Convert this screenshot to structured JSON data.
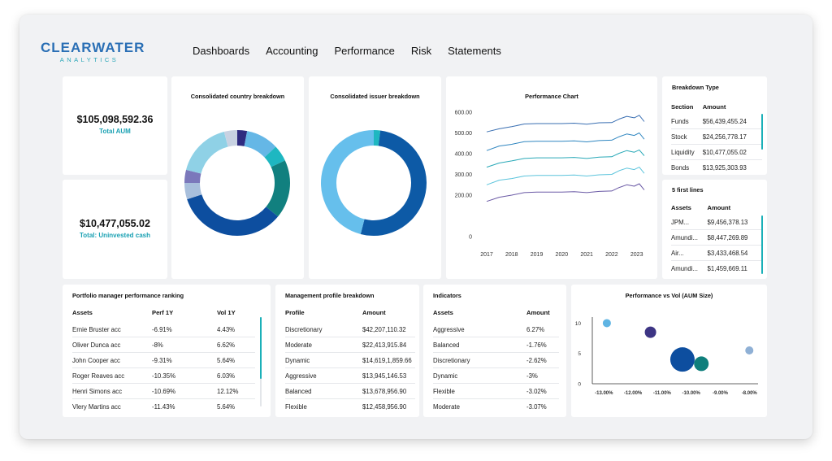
{
  "brand": {
    "name_line1": "CLEARWATER",
    "name_line2": "ANALYTICS"
  },
  "nav": [
    "Dashboards",
    "Accounting",
    "Performance",
    "Risk",
    "Statements"
  ],
  "kpis": {
    "total_aum": {
      "value": "$105,098,592.36",
      "label": "Total AUM"
    },
    "uninvested": {
      "value": "$10,477,055.02",
      "label": "Total: Uninvested cash"
    }
  },
  "country_breakdown": {
    "title": "Consolidated country breakdown",
    "segments": [
      {
        "value": 3,
        "color": "#2f2b80"
      },
      {
        "value": 10,
        "color": "#65b7e6"
      },
      {
        "value": 5,
        "color": "#1eb7c1"
      },
      {
        "value": 18,
        "color": "#11807f"
      },
      {
        "value": 34,
        "color": "#0d4e9f"
      },
      {
        "value": 5,
        "color": "#a8bfdc"
      },
      {
        "value": 4,
        "color": "#7b78bb"
      },
      {
        "value": 17,
        "color": "#8fd1e6"
      },
      {
        "value": 4,
        "color": "#c8d2e2"
      }
    ]
  },
  "issuer_breakdown": {
    "title": "Consolidated issuer breakdown",
    "segments": [
      {
        "value": 2,
        "color": "#1eb7c1"
      },
      {
        "value": 52,
        "color": "#0d5aa6"
      },
      {
        "value": 46,
        "color": "#66bfec"
      }
    ]
  },
  "chart_data": {
    "type": "line",
    "title": "Performance Chart",
    "x_ticks": [
      "2017",
      "2018",
      "2019",
      "2020",
      "2021",
      "2022",
      "2023"
    ],
    "y_ticks": [
      "600.00",
      "500.00",
      "400.00",
      "300.00",
      "200.00",
      "0"
    ],
    "ylim": [
      0,
      600
    ],
    "x_range": [
      2017,
      2023.4
    ],
    "series": [
      {
        "color": "#3a6fb2",
        "x": [
          2017.0,
          2017.5,
          2018.0,
          2018.5,
          2019.0,
          2019.5,
          2020.0,
          2020.5,
          2021.0,
          2021.5,
          2022.0,
          2022.3,
          2022.6,
          2022.9,
          2023.1,
          2023.3
        ],
        "y": [
          505,
          520,
          530,
          543,
          545,
          545,
          545,
          547,
          542,
          549,
          550,
          567,
          580,
          573,
          585,
          555
        ]
      },
      {
        "color": "#2f86c0",
        "x": [
          2017.0,
          2017.5,
          2018.0,
          2018.5,
          2019.0,
          2019.5,
          2020.0,
          2020.5,
          2021.0,
          2021.5,
          2022.0,
          2022.3,
          2022.6,
          2022.9,
          2023.1,
          2023.3
        ],
        "y": [
          415,
          437,
          445,
          458,
          460,
          460,
          460,
          462,
          457,
          463,
          465,
          482,
          495,
          488,
          500,
          470
        ]
      },
      {
        "color": "#2aa9b8",
        "x": [
          2017.0,
          2017.5,
          2018.0,
          2018.5,
          2019.0,
          2019.5,
          2020.0,
          2020.5,
          2021.0,
          2021.5,
          2022.0,
          2022.3,
          2022.6,
          2022.9,
          2023.1,
          2023.3
        ],
        "y": [
          335,
          355,
          365,
          377,
          380,
          380,
          380,
          382,
          377,
          383,
          385,
          402,
          415,
          407,
          418,
          390
        ]
      },
      {
        "color": "#5cc4dc",
        "x": [
          2017.0,
          2017.5,
          2018.0,
          2018.5,
          2019.0,
          2019.5,
          2020.0,
          2020.5,
          2021.0,
          2021.5,
          2022.0,
          2022.3,
          2022.6,
          2022.9,
          2023.1,
          2023.3
        ],
        "y": [
          250,
          272,
          280,
          292,
          295,
          295,
          295,
          297,
          292,
          298,
          300,
          318,
          330,
          323,
          335,
          305
        ]
      },
      {
        "color": "#6a59a5",
        "x": [
          2017.0,
          2017.5,
          2018.0,
          2018.5,
          2019.0,
          2019.5,
          2020.0,
          2020.5,
          2021.0,
          2021.5,
          2022.0,
          2022.3,
          2022.6,
          2022.9,
          2023.1,
          2023.3
        ],
        "y": [
          170,
          190,
          200,
          212,
          215,
          215,
          215,
          217,
          212,
          218,
          220,
          237,
          250,
          243,
          255,
          225
        ]
      }
    ]
  },
  "breakdown_type": {
    "title": "Breakdown Type",
    "headers": [
      "Section",
      "Amount"
    ],
    "rows": [
      [
        "Funds",
        "$56,439,455.24"
      ],
      [
        "Stock",
        "$24,256,778.17"
      ],
      [
        "Liquidity",
        "$10,477,055.02"
      ],
      [
        "Bonds",
        "$13,925,303.93"
      ]
    ]
  },
  "first_lines": {
    "title": "5 first lines",
    "headers": [
      "Assets",
      "Amount"
    ],
    "rows": [
      [
        "JPM...",
        "$9,456,378.13"
      ],
      [
        "Amundi...",
        "$8,447,269.89"
      ],
      [
        "Air...",
        "$3,433,468.54"
      ],
      [
        "Amundi...",
        "$1,459,669.11"
      ]
    ]
  },
  "pm_ranking": {
    "title": "Portfolio manager performance ranking",
    "headers": [
      "Assets",
      "Perf 1Y",
      "Vol 1Y"
    ],
    "rows": [
      [
        "Ernie Bruster acc",
        "-6.91%",
        "4.43%"
      ],
      [
        "Oliver Dunca acc",
        "-8%",
        "6.62%"
      ],
      [
        "John Cooper acc",
        "-9.31%",
        "5.64%"
      ],
      [
        "Roger Reaves acc",
        "-10.35%",
        "6.03%"
      ],
      [
        "Henri Simons acc",
        "-10.69%",
        "12.12%"
      ],
      [
        "Vlery Martins acc",
        "-11.43%",
        "5.64%"
      ]
    ]
  },
  "management_profile": {
    "title": "Management profile breakdown",
    "headers": [
      "Profile",
      "Amount"
    ],
    "rows": [
      [
        "Discretionary",
        "$42,207,110.32"
      ],
      [
        "Moderate",
        "$22,413,915.84"
      ],
      [
        "Dynamic",
        "$14,619,1,859.66"
      ],
      [
        "Aggressive",
        "$13,945,146.53"
      ],
      [
        "Balanced",
        "$13,678,956.90"
      ],
      [
        "Flexible",
        "$12,458,956.90"
      ]
    ]
  },
  "indicators": {
    "title": "Indicators",
    "headers": [
      "Assets",
      "Amount"
    ],
    "rows": [
      [
        "Aggressive",
        "6.27%"
      ],
      [
        "Balanced",
        "-1.76%"
      ],
      [
        "Discretionary",
        "-2.62%"
      ],
      [
        "Dynamic",
        "-3%"
      ],
      [
        "Flexible",
        "-3.02%"
      ],
      [
        "Moderate",
        "-3.07%"
      ]
    ]
  },
  "bubble_chart": {
    "type": "scatter",
    "title": "Performance vs Vol (AUM Size)",
    "x_ticks": [
      "-13.00%",
      "-12.00%",
      "-11.00%",
      "-10.00%",
      "-9.00%",
      "-8.00%"
    ],
    "y_ticks": [
      "10",
      "5",
      "0"
    ],
    "xlim": [
      -13.4,
      -7.7
    ],
    "ylim": [
      0,
      11
    ],
    "points": [
      {
        "x": -12.9,
        "y": 10,
        "size": 5,
        "color": "#5fb4e3"
      },
      {
        "x": -11.4,
        "y": 8.5,
        "size": 7,
        "color": "#3d3584"
      },
      {
        "x": -10.3,
        "y": 4,
        "size": 15,
        "color": "#0d4e9f"
      },
      {
        "x": -9.65,
        "y": 3.3,
        "size": 9,
        "color": "#0f7f7c"
      },
      {
        "x": -8.0,
        "y": 5.5,
        "size": 5,
        "color": "#8fb0d5"
      }
    ]
  }
}
